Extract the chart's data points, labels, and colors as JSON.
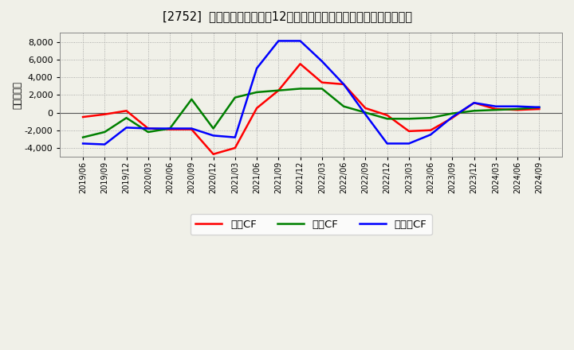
{
  "title": "[2752]  キャッシュフローの12か月移動合計の対前年同期増減額の推移",
  "ylabel": "（百万円）",
  "x_labels": [
    "2019/06",
    "2019/09",
    "2019/12",
    "2020/03",
    "2020/06",
    "2020/09",
    "2020/12",
    "2021/03",
    "2021/06",
    "2021/09",
    "2021/12",
    "2022/03",
    "2022/06",
    "2022/09",
    "2022/12",
    "2023/03",
    "2023/06",
    "2023/09",
    "2023/12",
    "2024/03",
    "2024/06",
    "2024/09"
  ],
  "operating_cf": [
    -500,
    -200,
    200,
    -1800,
    -1900,
    -1900,
    -4700,
    -4000,
    500,
    2500,
    5500,
    3400,
    3200,
    500,
    -300,
    -2100,
    -2000,
    -600,
    1100,
    400,
    300,
    400
  ],
  "investing_cf": [
    -2800,
    -2200,
    -600,
    -2200,
    -1800,
    1500,
    -1800,
    1700,
    2300,
    2500,
    2700,
    2700,
    700,
    0,
    -700,
    -700,
    -600,
    -100,
    200,
    300,
    400,
    600
  ],
  "free_cf": [
    -3500,
    -3600,
    -1700,
    -1800,
    -1800,
    -1800,
    -2600,
    -2800,
    5000,
    8100,
    8100,
    5800,
    3200,
    -200,
    -3500,
    -3500,
    -2500,
    -500,
    1100,
    700,
    700,
    600
  ],
  "operating_color": "#ff0000",
  "investing_color": "#008000",
  "free_color": "#0000ff",
  "bg_color": "#f0f0e8",
  "ylim": [
    -5000,
    9000
  ],
  "yticks": [
    -4000,
    -2000,
    0,
    2000,
    4000,
    6000,
    8000
  ],
  "legend_labels": [
    "営業CF",
    "投資CF",
    "フリーCF"
  ]
}
